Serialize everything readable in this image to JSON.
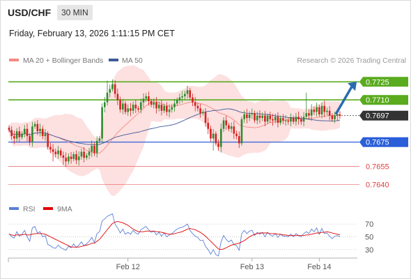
{
  "header": {
    "symbol": "USD/CHF",
    "timeframe": "30 MIN",
    "datetime": "Friday, February 13, 2026 1:11:15 PM CET"
  },
  "legend": {
    "ma20_label": "MA 20 + Bollinger Bands",
    "ma50_label": "MA 50",
    "credit": "Research © 2026 Trading Central",
    "ma20_color": "#f28b82",
    "ma50_color": "#3c5a99"
  },
  "rsi_legend": {
    "rsi_label": "RSI",
    "ma_label": "9MA",
    "rsi_color": "#5b7fd6",
    "ma_color": "#e00000"
  },
  "colors": {
    "resistance": "#5aab1e",
    "support": "#2b5fd9",
    "target": "#e04040",
    "up_candle": "#2e8b2e",
    "down_candle": "#d62020",
    "current": "#333333",
    "arrow": "#2a6bb0",
    "band_fill": "#fde0e0"
  },
  "chart_data": {
    "type": "candlestick",
    "instrument": "USD/CHF",
    "timeframe": "30 MIN",
    "ylim": [
      0.7628,
      0.7735
    ],
    "x_ticks": [
      {
        "label": "Feb 12",
        "index": 46
      },
      {
        "label": "Feb 13",
        "index": 94
      },
      {
        "label": "Feb 14",
        "index": 120
      }
    ],
    "levels": [
      {
        "label": "0.7725",
        "value": 0.7725,
        "kind": "resistance"
      },
      {
        "label": "0.7710",
        "value": 0.771,
        "kind": "resistance"
      },
      {
        "label": "0.7697",
        "value": 0.7697,
        "kind": "current"
      },
      {
        "label": "0.7675",
        "value": 0.7675,
        "kind": "support"
      },
      {
        "label": "0.7655",
        "value": 0.7655,
        "kind": "target"
      },
      {
        "label": "0.7640",
        "value": 0.764,
        "kind": "target"
      }
    ],
    "close": [
      0.7685,
      0.768,
      0.7678,
      0.7684,
      0.7679,
      0.7682,
      0.7686,
      0.768,
      0.7675,
      0.7688,
      0.769,
      0.7684,
      0.7686,
      0.768,
      0.7682,
      0.7671,
      0.7669,
      0.7667,
      0.7665,
      0.7668,
      0.7664,
      0.7662,
      0.7659,
      0.7663,
      0.7661,
      0.7665,
      0.766,
      0.7663,
      0.7667,
      0.7662,
      0.7664,
      0.7667,
      0.7672,
      0.7666,
      0.7676,
      0.7678,
      0.7704,
      0.7708,
      0.7716,
      0.7719,
      0.7723,
      0.7715,
      0.771,
      0.7702,
      0.7707,
      0.77,
      0.7703,
      0.7701,
      0.7706,
      0.7703,
      0.7702,
      0.7708,
      0.7711,
      0.7713,
      0.7709,
      0.7706,
      0.7708,
      0.7703,
      0.7706,
      0.7701,
      0.7705,
      0.77,
      0.7702,
      0.7704,
      0.7707,
      0.771,
      0.7712,
      0.7713,
      0.7715,
      0.7718,
      0.7712,
      0.7708,
      0.7705,
      0.7703,
      0.7699,
      0.77,
      0.7691,
      0.7686,
      0.7678,
      0.7682,
      0.7674,
      0.7671,
      0.7686,
      0.7693,
      0.7689,
      0.7686,
      0.7688,
      0.7682,
      0.768,
      0.7674,
      0.7694,
      0.7698,
      0.7695,
      0.7698,
      0.7699,
      0.7693,
      0.7697,
      0.7695,
      0.7697,
      0.7692,
      0.7697,
      0.7694,
      0.7693,
      0.7696,
      0.7691,
      0.7695,
      0.7693,
      0.7693,
      0.7692,
      0.7695,
      0.7692,
      0.7696,
      0.7694,
      0.7692,
      0.7696,
      0.7699,
      0.7697,
      0.7702,
      0.77,
      0.7704,
      0.7698,
      0.7705,
      0.77,
      0.7701,
      0.7697,
      0.7694,
      0.7697,
      0.7698,
      0.7697
    ],
    "rsi": {
      "ylim": [
        20,
        80
      ],
      "levels": [
        70,
        50,
        30
      ],
      "rsi": [
        55,
        50,
        48,
        58,
        51,
        54,
        60,
        50,
        43,
        64,
        66,
        56,
        58,
        50,
        52,
        38,
        36,
        33,
        32,
        37,
        33,
        31,
        29,
        35,
        33,
        39,
        33,
        37,
        42,
        36,
        39,
        43,
        49,
        41,
        55,
        58,
        75,
        78,
        82,
        84,
        86,
        70,
        64,
        56,
        62,
        54,
        57,
        54,
        60,
        56,
        54,
        61,
        64,
        66,
        61,
        57,
        59,
        53,
        57,
        51,
        56,
        50,
        53,
        55,
        59,
        62,
        64,
        65,
        67,
        70,
        60,
        55,
        51,
        49,
        44,
        45,
        35,
        30,
        23,
        30,
        22,
        20,
        42,
        52,
        46,
        42,
        45,
        38,
        36,
        29,
        55,
        60,
        55,
        59,
        60,
        52,
        57,
        54,
        57,
        50,
        57,
        53,
        51,
        55,
        49,
        54,
        51,
        51,
        50,
        54,
        50,
        55,
        52,
        50,
        55,
        58,
        55,
        62,
        58,
        64,
        54,
        63,
        55,
        56,
        51,
        47,
        51,
        52,
        50
      ],
      "ma9": [
        54,
        53,
        52,
        53,
        53,
        53,
        54,
        53,
        53,
        54,
        55,
        55,
        55,
        55,
        54,
        52,
        50,
        48,
        46,
        44,
        42,
        40,
        38,
        36,
        34,
        34,
        34,
        34,
        35,
        36,
        37,
        38,
        40,
        40,
        43,
        46,
        51,
        56,
        61,
        66,
        71,
        73,
        74,
        73,
        72,
        70,
        68,
        65,
        62,
        60,
        58,
        58,
        58,
        59,
        59,
        59,
        59,
        58,
        58,
        57,
        56,
        55,
        54,
        54,
        55,
        56,
        57,
        58,
        60,
        62,
        63,
        62,
        61,
        59,
        57,
        54,
        51,
        47,
        43,
        39,
        35,
        31,
        30,
        31,
        33,
        35,
        37,
        38,
        39,
        40,
        42,
        44,
        47,
        50,
        52,
        54,
        55,
        56,
        56,
        56,
        56,
        55,
        55,
        55,
        54,
        54,
        53,
        53,
        52,
        52,
        52,
        52,
        52,
        52,
        52,
        53,
        53,
        54,
        55,
        56,
        56,
        57,
        57,
        58,
        57,
        56,
        55,
        54,
        53
      ]
    }
  }
}
